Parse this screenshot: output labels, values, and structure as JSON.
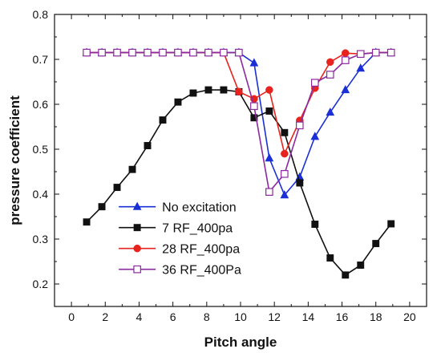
{
  "chart_data": {
    "type": "line",
    "title": "",
    "xlabel": "Pitch angle",
    "ylabel": "pressure coefficient",
    "xlim": [
      -1,
      21
    ],
    "ylim": [
      0.15,
      0.8
    ],
    "xticks": [
      0,
      2,
      4,
      6,
      8,
      10,
      12,
      14,
      16,
      18,
      20
    ],
    "yticks": [
      0.2,
      0.3,
      0.4,
      0.5,
      0.6,
      0.7,
      0.8
    ],
    "xtick_labels": [
      "0",
      "2",
      "4",
      "6",
      "8",
      "10",
      "12",
      "14",
      "16",
      "18",
      "20"
    ],
    "ytick_labels": [
      "0.2",
      "0.3",
      "0.4",
      "0.5",
      "0.6",
      "0.7",
      "0.8"
    ],
    "grid": false,
    "legend_position": "lower-left",
    "series": [
      {
        "name": "No excitation",
        "color": "#1a2fd6",
        "marker": "triangle-filled",
        "x": [
          0.9,
          1.8,
          2.7,
          3.6,
          4.5,
          5.4,
          6.3,
          7.2,
          8.1,
          9.0,
          9.9,
          10.8,
          11.7,
          12.6,
          13.5,
          14.4,
          15.3,
          16.2,
          17.1,
          18.0,
          18.9
        ],
        "y": [
          0.715,
          0.715,
          0.715,
          0.715,
          0.715,
          0.715,
          0.715,
          0.715,
          0.715,
          0.715,
          0.715,
          0.692,
          0.48,
          0.398,
          0.438,
          0.528,
          0.582,
          0.632,
          0.68,
          0.715,
          0.715
        ]
      },
      {
        "name": "7 RF_400pa",
        "color": "#111111",
        "marker": "square-filled",
        "x": [
          0.9,
          1.8,
          2.7,
          3.6,
          4.5,
          5.4,
          6.3,
          7.2,
          8.1,
          9.0,
          9.9,
          10.8,
          11.7,
          12.6,
          13.5,
          14.4,
          15.3,
          16.2,
          17.1,
          18.0,
          18.9
        ],
        "y": [
          0.338,
          0.372,
          0.415,
          0.455,
          0.508,
          0.565,
          0.605,
          0.625,
          0.632,
          0.632,
          0.628,
          0.57,
          0.585,
          0.537,
          0.425,
          0.333,
          0.258,
          0.22,
          0.242,
          0.29,
          0.334
        ]
      },
      {
        "name": "28 RF_400pa",
        "color": "#e8231e",
        "marker": "circle-filled",
        "x": [
          0.9,
          1.8,
          2.7,
          3.6,
          4.5,
          5.4,
          6.3,
          7.2,
          8.1,
          9.0,
          9.9,
          10.8,
          11.7,
          12.6,
          13.5,
          14.4,
          15.3,
          16.2,
          17.1,
          18.0,
          18.9
        ],
        "y": [
          0.715,
          0.715,
          0.715,
          0.715,
          0.715,
          0.715,
          0.715,
          0.715,
          0.715,
          0.715,
          0.628,
          0.612,
          0.632,
          0.49,
          0.564,
          0.636,
          0.694,
          0.714,
          0.712,
          0.715,
          0.715
        ]
      },
      {
        "name": "36 RF_400Pa",
        "color": "#8b2a9e",
        "marker": "square-open",
        "x": [
          0.9,
          1.8,
          2.7,
          3.6,
          4.5,
          5.4,
          6.3,
          7.2,
          8.1,
          9.0,
          9.9,
          10.8,
          11.7,
          12.6,
          13.5,
          14.4,
          15.3,
          16.2,
          17.1,
          18.0,
          18.9
        ],
        "y": [
          0.715,
          0.715,
          0.715,
          0.715,
          0.715,
          0.715,
          0.715,
          0.715,
          0.715,
          0.715,
          0.715,
          0.596,
          0.405,
          0.445,
          0.553,
          0.648,
          0.666,
          0.698,
          0.712,
          0.715,
          0.715
        ]
      }
    ]
  }
}
